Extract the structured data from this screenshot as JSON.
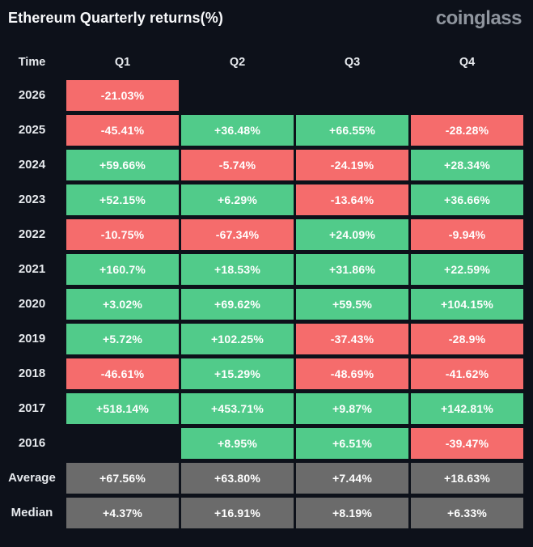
{
  "header": {
    "title": "Ethereum Quarterly returns(%)",
    "logo": "coinglass"
  },
  "table": {
    "columns": [
      "Time",
      "Q1",
      "Q2",
      "Q3",
      "Q4"
    ],
    "rows": [
      {
        "label": "2026",
        "cells": [
          {
            "text": "-21.03%",
            "color": "red"
          },
          {
            "text": "",
            "color": "empty"
          },
          {
            "text": "",
            "color": "empty"
          },
          {
            "text": "",
            "color": "empty"
          }
        ]
      },
      {
        "label": "2025",
        "cells": [
          {
            "text": "-45.41%",
            "color": "red"
          },
          {
            "text": "+36.48%",
            "color": "green"
          },
          {
            "text": "+66.55%",
            "color": "green"
          },
          {
            "text": "-28.28%",
            "color": "red"
          }
        ]
      },
      {
        "label": "2024",
        "cells": [
          {
            "text": "+59.66%",
            "color": "green"
          },
          {
            "text": "-5.74%",
            "color": "red"
          },
          {
            "text": "-24.19%",
            "color": "red"
          },
          {
            "text": "+28.34%",
            "color": "green"
          }
        ]
      },
      {
        "label": "2023",
        "cells": [
          {
            "text": "+52.15%",
            "color": "green"
          },
          {
            "text": "+6.29%",
            "color": "green"
          },
          {
            "text": "-13.64%",
            "color": "red"
          },
          {
            "text": "+36.66%",
            "color": "green"
          }
        ]
      },
      {
        "label": "2022",
        "cells": [
          {
            "text": "-10.75%",
            "color": "red"
          },
          {
            "text": "-67.34%",
            "color": "red"
          },
          {
            "text": "+24.09%",
            "color": "green"
          },
          {
            "text": "-9.94%",
            "color": "red"
          }
        ]
      },
      {
        "label": "2021",
        "cells": [
          {
            "text": "+160.7%",
            "color": "green"
          },
          {
            "text": "+18.53%",
            "color": "green"
          },
          {
            "text": "+31.86%",
            "color": "green"
          },
          {
            "text": "+22.59%",
            "color": "green"
          }
        ]
      },
      {
        "label": "2020",
        "cells": [
          {
            "text": "+3.02%",
            "color": "green"
          },
          {
            "text": "+69.62%",
            "color": "green"
          },
          {
            "text": "+59.5%",
            "color": "green"
          },
          {
            "text": "+104.15%",
            "color": "green"
          }
        ]
      },
      {
        "label": "2019",
        "cells": [
          {
            "text": "+5.72%",
            "color": "green"
          },
          {
            "text": "+102.25%",
            "color": "green"
          },
          {
            "text": "-37.43%",
            "color": "red"
          },
          {
            "text": "-28.9%",
            "color": "red"
          }
        ]
      },
      {
        "label": "2018",
        "cells": [
          {
            "text": "-46.61%",
            "color": "red"
          },
          {
            "text": "+15.29%",
            "color": "green"
          },
          {
            "text": "-48.69%",
            "color": "red"
          },
          {
            "text": "-41.62%",
            "color": "red"
          }
        ]
      },
      {
        "label": "2017",
        "cells": [
          {
            "text": "+518.14%",
            "color": "green"
          },
          {
            "text": "+453.71%",
            "color": "green"
          },
          {
            "text": "+9.87%",
            "color": "green"
          },
          {
            "text": "+142.81%",
            "color": "green"
          }
        ]
      },
      {
        "label": "2016",
        "cells": [
          {
            "text": "",
            "color": "empty"
          },
          {
            "text": "+8.95%",
            "color": "green"
          },
          {
            "text": "+6.51%",
            "color": "green"
          },
          {
            "text": "-39.47%",
            "color": "red"
          }
        ]
      },
      {
        "label": "Average",
        "cells": [
          {
            "text": "+67.56%",
            "color": "gray"
          },
          {
            "text": "+63.80%",
            "color": "gray"
          },
          {
            "text": "+7.44%",
            "color": "gray"
          },
          {
            "text": "+18.63%",
            "color": "gray"
          }
        ]
      },
      {
        "label": "Median",
        "cells": [
          {
            "text": "+4.37%",
            "color": "gray"
          },
          {
            "text": "+16.91%",
            "color": "gray"
          },
          {
            "text": "+8.19%",
            "color": "gray"
          },
          {
            "text": "+6.33%",
            "color": "gray"
          }
        ]
      }
    ]
  },
  "colors": {
    "background": "#0d111a",
    "positive": "#51cb8a",
    "negative": "#f56c6c",
    "summary": "#6b6b6b",
    "logo": "#8f959e"
  },
  "chart_data": {
    "type": "heatmap",
    "title": "Ethereum Quarterly returns(%)",
    "columns": [
      "Q1",
      "Q2",
      "Q3",
      "Q4"
    ],
    "rows": [
      "2026",
      "2025",
      "2024",
      "2023",
      "2022",
      "2021",
      "2020",
      "2019",
      "2018",
      "2017",
      "2016",
      "Average",
      "Median"
    ],
    "values": [
      [
        -21.03,
        null,
        null,
        null
      ],
      [
        -45.41,
        36.48,
        66.55,
        -28.28
      ],
      [
        59.66,
        -5.74,
        -24.19,
        28.34
      ],
      [
        52.15,
        6.29,
        -13.64,
        36.66
      ],
      [
        -10.75,
        -67.34,
        24.09,
        -9.94
      ],
      [
        160.7,
        18.53,
        31.86,
        22.59
      ],
      [
        3.02,
        69.62,
        59.5,
        104.15
      ],
      [
        5.72,
        102.25,
        -37.43,
        -28.9
      ],
      [
        -46.61,
        15.29,
        -48.69,
        -41.62
      ],
      [
        518.14,
        453.71,
        9.87,
        142.81
      ],
      [
        null,
        8.95,
        6.51,
        -39.47
      ],
      [
        67.56,
        63.8,
        7.44,
        18.63
      ],
      [
        4.37,
        16.91,
        8.19,
        6.33
      ]
    ],
    "legend_position": "none",
    "positive_color": "#51cb8a",
    "negative_color": "#f56c6c",
    "summary_rows_color": "#6b6b6b"
  }
}
